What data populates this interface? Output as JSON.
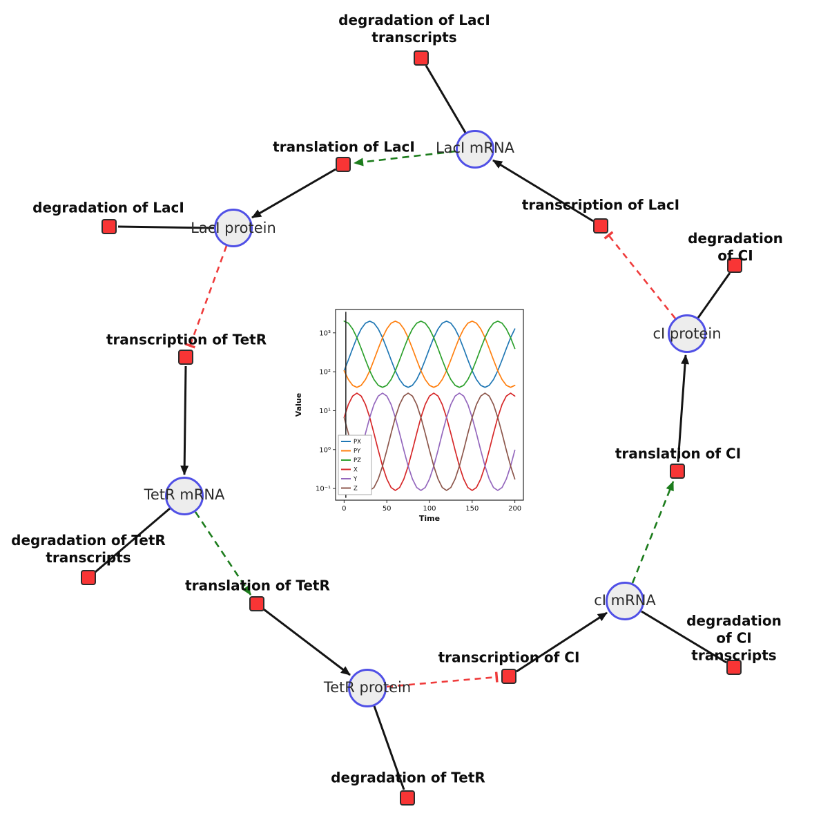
{
  "diagram": {
    "species": {
      "laci_mrna": {
        "label": "LacI mRNA"
      },
      "laci_protein": {
        "label": "LacI protein"
      },
      "tetr_mrna": {
        "label": "TetR mRNA"
      },
      "tetr_protein": {
        "label": "TetR protein"
      },
      "ci_mrna": {
        "label": "cI mRNA"
      },
      "ci_protein": {
        "label": "cI protein"
      }
    },
    "reactions": {
      "deg_laci_tx": {
        "label": "degradation of LacI\ntranscripts"
      },
      "transl_laci": {
        "label": "translation of LacI"
      },
      "deg_laci": {
        "label": "degradation of LacI"
      },
      "tx_laci": {
        "label": "transcription of LacI"
      },
      "deg_ci": {
        "label": "degradation of CI"
      },
      "tx_tetr": {
        "label": "transcription of TetR"
      },
      "transl_ci": {
        "label": "translation of CI"
      },
      "deg_tetr_tx": {
        "label": "degradation of TetR\ntranscripts"
      },
      "transl_tetr": {
        "label": "translation of TetR"
      },
      "tx_ci": {
        "label": "transcription of CI"
      },
      "deg_ci_tx": {
        "label": "degradation of CI\ntranscripts"
      },
      "deg_tetr": {
        "label": "degradation of TetR"
      }
    },
    "edge_colors": {
      "mass_flow": "#141414",
      "activation": "#1c7c1c",
      "inhibition": "#ef3b3b"
    },
    "node_colors": {
      "species_fill": "#ededed",
      "species_border": "#5050e6",
      "reaction_fill": "#f83535",
      "reaction_border": "#2d2d2d"
    }
  },
  "chart_data": {
    "type": "line",
    "title": "",
    "xlabel": "Time",
    "ylabel": "Value",
    "y_scale": "log",
    "xlim": [
      -10,
      210
    ],
    "ylim_log10": [
      -1.3,
      3.6
    ],
    "grid": false,
    "legend_position": "lower left",
    "transient_time": 2,
    "x_ticks": [
      0,
      50,
      100,
      150,
      200
    ],
    "y_ticks": [
      {
        "label": "10³",
        "log10": 3
      },
      {
        "label": "10²",
        "log10": 2
      },
      {
        "label": "10¹",
        "log10": 1
      },
      {
        "label": "10⁰",
        "log10": 0
      },
      {
        "label": "10⁻¹",
        "log10": -1
      }
    ],
    "x": [
      0,
      5,
      10,
      15,
      20,
      25,
      30,
      35,
      40,
      45,
      50,
      55,
      60,
      65,
      70,
      75,
      80,
      85,
      90,
      95,
      100,
      105,
      110,
      115,
      120,
      125,
      130,
      135,
      140,
      145,
      150,
      155,
      160,
      165,
      170,
      175,
      180,
      185,
      190,
      195,
      200
    ],
    "series": [
      {
        "name": "PX",
        "color": "#1f77b4",
        "values": [
          106,
          201,
          396,
          750,
          1262,
          1774,
          1995,
          1774,
          1262,
          750,
          396,
          201,
          106,
          63,
          44.8,
          39.8,
          44.8,
          63,
          106,
          201,
          396,
          750,
          1262,
          1774,
          1995,
          1774,
          1262,
          750,
          396,
          201,
          106,
          63,
          44.8,
          39.8,
          44.8,
          63,
          106,
          201,
          396,
          750,
          1262
        ]
      },
      {
        "name": "PY",
        "color": "#ff7f0e",
        "values": [
          106,
          63,
          44.8,
          39.8,
          44.8,
          63,
          106,
          201,
          396,
          750,
          1262,
          1774,
          1995,
          1774,
          1262,
          750,
          396,
          201,
          106,
          63,
          44.8,
          39.8,
          44.8,
          63,
          106,
          201,
          396,
          750,
          1262,
          1774,
          1995,
          1774,
          1262,
          750,
          396,
          201,
          106,
          63,
          44.8,
          39.8,
          44.8
        ]
      },
      {
        "name": "PZ",
        "color": "#2ca02c",
        "values": [
          1995,
          1774,
          1262,
          750,
          396,
          201,
          106,
          63,
          44.8,
          39.8,
          44.8,
          63,
          106,
          201,
          396,
          750,
          1262,
          1774,
          1995,
          1774,
          1262,
          750,
          396,
          201,
          106,
          63,
          44.8,
          39.8,
          44.8,
          63,
          106,
          201,
          396,
          750,
          1262,
          1774,
          1995,
          1774,
          1262,
          750,
          396
        ]
      },
      {
        "name": "X",
        "color": "#d62728",
        "values": [
          6.68,
          14.4,
          23.7,
          28.2,
          23.7,
          14.4,
          6.68,
          2.61,
          0.962,
          0.376,
          0.175,
          0.106,
          0.0891,
          0.106,
          0.175,
          0.376,
          0.962,
          2.61,
          6.68,
          14.4,
          23.7,
          28.2,
          23.7,
          14.4,
          6.68,
          2.61,
          0.962,
          0.376,
          0.175,
          0.106,
          0.0891,
          0.106,
          0.175,
          0.376,
          0.962,
          2.61,
          6.68,
          14.4,
          23.7,
          28.2,
          23.7
        ]
      },
      {
        "name": "Y",
        "color": "#9467bd",
        "values": [
          0.0891,
          0.106,
          0.175,
          0.376,
          0.962,
          2.61,
          6.68,
          14.4,
          23.7,
          28.2,
          23.7,
          14.4,
          6.68,
          2.61,
          0.962,
          0.376,
          0.175,
          0.106,
          0.0891,
          0.106,
          0.175,
          0.376,
          0.962,
          2.61,
          6.68,
          14.4,
          23.7,
          28.2,
          23.7,
          14.4,
          6.68,
          2.61,
          0.962,
          0.376,
          0.175,
          0.106,
          0.0891,
          0.106,
          0.175,
          0.376,
          0.962
        ]
      },
      {
        "name": "Z",
        "color": "#8c564b",
        "values": [
          6.68,
          2.61,
          0.962,
          0.376,
          0.175,
          0.106,
          0.0891,
          0.106,
          0.175,
          0.376,
          0.962,
          2.61,
          6.68,
          14.4,
          23.7,
          28.2,
          23.7,
          14.4,
          6.68,
          2.61,
          0.962,
          0.376,
          0.175,
          0.106,
          0.0891,
          0.106,
          0.175,
          0.376,
          0.962,
          2.61,
          6.68,
          14.4,
          23.7,
          28.2,
          23.7,
          14.4,
          6.68,
          2.61,
          0.962,
          0.376,
          0.175
        ]
      }
    ]
  }
}
